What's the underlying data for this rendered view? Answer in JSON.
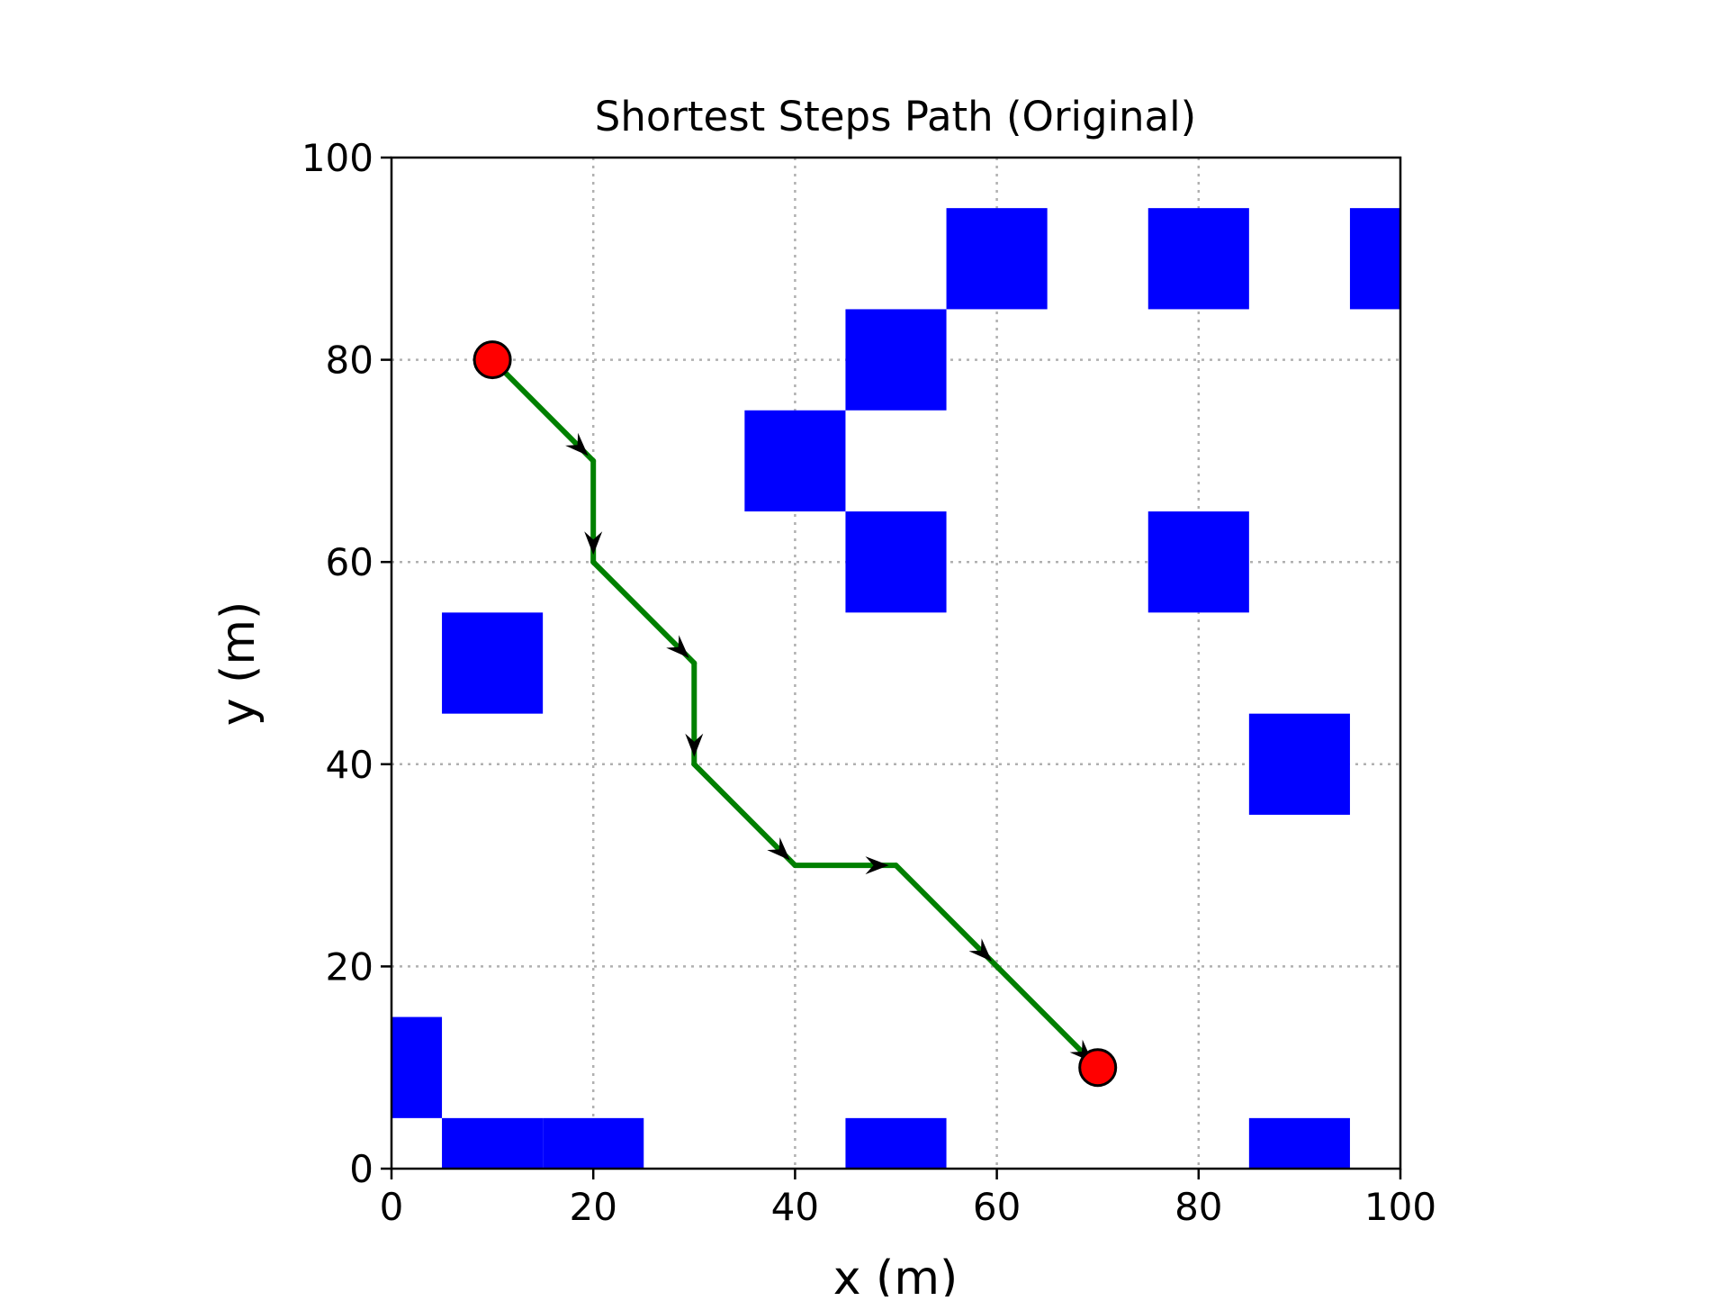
{
  "chart_data": {
    "type": "scatter",
    "title": "Shortest Steps Path (Original)",
    "xlabel": "x (m)",
    "ylabel": "y (m)",
    "xlim": [
      0,
      100
    ],
    "ylim": [
      0,
      100
    ],
    "xticks": [
      0,
      20,
      40,
      60,
      80,
      100
    ],
    "yticks": [
      0,
      20,
      40,
      60,
      80,
      100
    ],
    "grid": true,
    "obstacle_cell_size": 10,
    "obstacles": [
      {
        "x": 0,
        "y": 10
      },
      {
        "x": 10,
        "y": 0
      },
      {
        "x": 20,
        "y": 0
      },
      {
        "x": 50,
        "y": 0
      },
      {
        "x": 90,
        "y": 0
      },
      {
        "x": 10,
        "y": 50
      },
      {
        "x": 40,
        "y": 70
      },
      {
        "x": 50,
        "y": 80
      },
      {
        "x": 50,
        "y": 60
      },
      {
        "x": 60,
        "y": 90
      },
      {
        "x": 80,
        "y": 90
      },
      {
        "x": 100,
        "y": 90
      },
      {
        "x": 80,
        "y": 60
      },
      {
        "x": 90,
        "y": 40
      }
    ],
    "path": [
      {
        "x": 10,
        "y": 80
      },
      {
        "x": 20,
        "y": 70
      },
      {
        "x": 20,
        "y": 60
      },
      {
        "x": 30,
        "y": 50
      },
      {
        "x": 30,
        "y": 40
      },
      {
        "x": 40,
        "y": 30
      },
      {
        "x": 50,
        "y": 30
      },
      {
        "x": 60,
        "y": 20
      },
      {
        "x": 70,
        "y": 10
      }
    ],
    "start": {
      "x": 10,
      "y": 80
    },
    "goal": {
      "x": 70,
      "y": 10
    },
    "colors": {
      "obstacle": "#0000ff",
      "path": "#008000",
      "endpoint": "#ff0000",
      "arrow": "#000000",
      "grid": "#b0b0b0"
    }
  }
}
